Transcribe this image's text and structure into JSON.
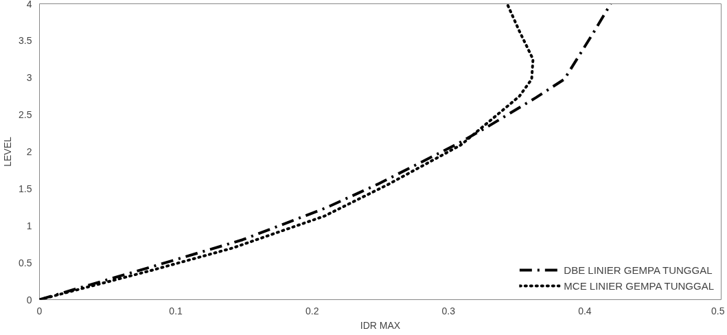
{
  "chart_data": {
    "type": "line",
    "xlabel": "IDR MAX",
    "ylabel": "LEVEL",
    "xlim": [
      0,
      0.5
    ],
    "ylim": [
      0,
      4
    ],
    "xticks": [
      0,
      0.1,
      0.2,
      0.3,
      0.4,
      0.5
    ],
    "yticks": [
      0,
      0.5,
      1,
      1.5,
      2,
      2.5,
      3,
      3.5,
      4
    ],
    "grid": false,
    "legend": "bottom right",
    "marker": "none",
    "series": [
      {
        "name": "DBE LINIER GEMPA TUNGGAL",
        "color": "#000000",
        "line_style": "dashed",
        "x": [
          0,
          0.024,
          0.087,
          0.149,
          0.21,
          0.248,
          0.307,
          0.328,
          0.364,
          0.385,
          0.407,
          0.419
        ],
        "values": [
          0,
          0.13,
          0.47,
          0.81,
          1.24,
          1.56,
          2.11,
          2.33,
          2.73,
          2.98,
          3.63,
          4.0
        ]
      },
      {
        "name": "MCE LINIER GEMPA TUNGGAL",
        "color": "#000000",
        "line_style": "dotted",
        "x": [
          0,
          0.081,
          0.142,
          0.209,
          0.256,
          0.309,
          0.341,
          0.352,
          0.361,
          0.362,
          0.352,
          0.343
        ],
        "values": [
          0,
          0.39,
          0.7,
          1.13,
          1.56,
          2.09,
          2.58,
          2.75,
          2.98,
          3.25,
          3.63,
          4.0
        ]
      }
    ]
  }
}
